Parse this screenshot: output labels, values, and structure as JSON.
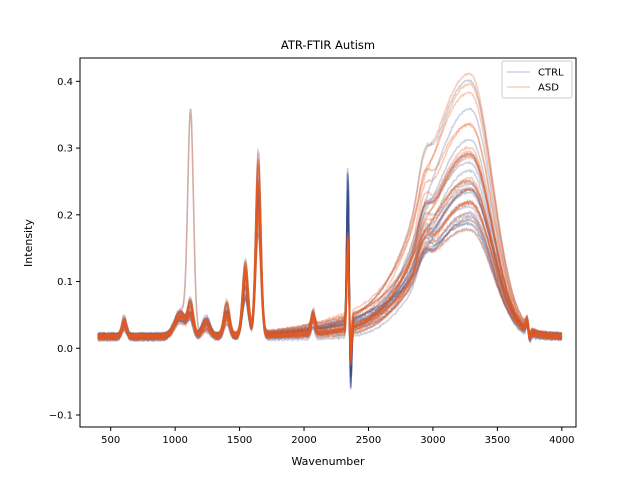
{
  "chart_data": {
    "type": "line",
    "title": "ATR-FTIR Autism",
    "xlabel": "Wavenumber",
    "ylabel": "Intensity",
    "xlim": [
      262,
      4110
    ],
    "ylim": [
      -0.118,
      0.435
    ],
    "xticks": [
      500,
      1000,
      1500,
      2000,
      2500,
      3000,
      3500,
      4000
    ],
    "yticks": [
      -0.1,
      0.0,
      0.1,
      0.2,
      0.3,
      0.4
    ],
    "xtick_labels": [
      "500",
      "1000",
      "1500",
      "2000",
      "2500",
      "3000",
      "3500",
      "4000"
    ],
    "ytick_labels": [
      "−0.1",
      "0.0",
      "0.1",
      "0.2",
      "0.3",
      "0.4"
    ],
    "grid": false,
    "legend_position": "top-right",
    "series": [
      {
        "name": "CTRL",
        "color": "#324b8c",
        "opacity": 0.25,
        "representative_x": [
          400,
          520,
          620,
          800,
          1000,
          1080,
          1120,
          1160,
          1250,
          1400,
          1500,
          1560,
          1600,
          1650,
          1700,
          1750,
          2000,
          2070,
          2300,
          2340,
          2360,
          2380,
          2450,
          2600,
          2800,
          3000,
          3200,
          3300,
          3400,
          3550,
          3700,
          3750,
          4000
        ],
        "representative_y": [
          0.01,
          0.02,
          0.03,
          0.03,
          0.06,
          0.09,
          0.05,
          0.04,
          0.03,
          0.04,
          0.05,
          0.08,
          0.12,
          0.24,
          0.03,
          0.02,
          0.01,
          0.02,
          0.02,
          0.21,
          -0.07,
          0.03,
          0.03,
          0.04,
          0.07,
          0.12,
          0.22,
          0.25,
          0.18,
          0.07,
          0.01,
          0.02,
          0.01
        ]
      },
      {
        "name": "ASD",
        "color": "#e85a1e",
        "opacity": 0.3,
        "representative_x": [
          400,
          520,
          620,
          800,
          1000,
          1080,
          1120,
          1160,
          1250,
          1400,
          1500,
          1560,
          1600,
          1650,
          1700,
          1750,
          2000,
          2070,
          2300,
          2340,
          2360,
          2380,
          2450,
          2600,
          2800,
          3000,
          3200,
          3300,
          3400,
          3550,
          3700,
          3750,
          4000
        ],
        "representative_y": [
          0.015,
          0.025,
          0.04,
          0.035,
          0.06,
          0.1,
          0.055,
          0.045,
          0.035,
          0.05,
          0.06,
          0.12,
          0.15,
          0.27,
          0.04,
          0.025,
          0.02,
          0.03,
          0.03,
          0.16,
          -0.03,
          0.04,
          0.04,
          0.055,
          0.09,
          0.15,
          0.26,
          0.29,
          0.2,
          0.08,
          0.01,
          0.02,
          0.012
        ]
      }
    ]
  }
}
